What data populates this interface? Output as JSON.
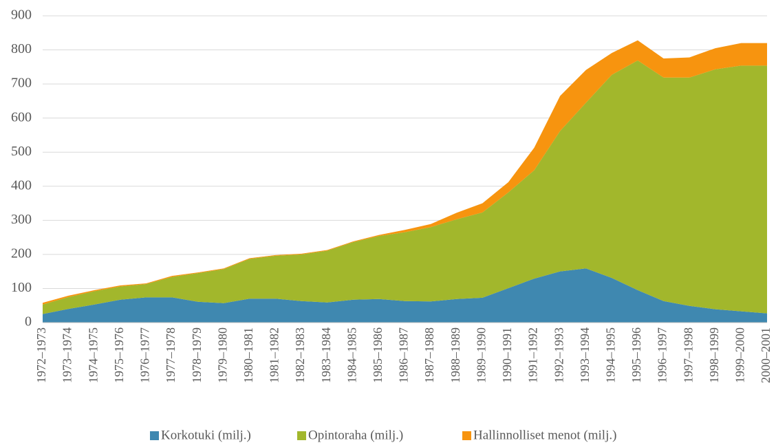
{
  "chart_data": {
    "type": "stacked_area",
    "categories": [
      "1972–1973",
      "1973–1974",
      "1974–1975",
      "1975–1976",
      "1976–1977",
      "1977–1978",
      "1978–1979",
      "1979–1980",
      "1980–1981",
      "1981–1982",
      "1982–1983",
      "1983–1984",
      "1984–1985",
      "1985–1986",
      "1986–1987",
      "1987–1988",
      "1988–1989",
      "1989–1990",
      "1990–1991",
      "1991–1992",
      "1992–1993",
      "1993–1994",
      "1994–1995",
      "1995–1996",
      "1996–1997",
      "1997–1998",
      "1998–1999",
      "1999–2000",
      "2000–2001"
    ],
    "series": [
      {
        "name": "Korkotuki (milj.)",
        "color": "#3f88b0",
        "values": [
          25,
          40,
          53,
          67,
          74,
          74,
          61,
          57,
          70,
          70,
          63,
          59,
          67,
          69,
          63,
          62,
          69,
          73,
          101,
          129,
          150,
          159,
          131,
          95,
          63,
          49,
          39,
          33,
          27
        ]
      },
      {
        "name": "Opintoraha (milj.)",
        "color": "#a2b72c",
        "values": [
          28,
          35,
          39,
          39,
          39,
          60,
          84,
          100,
          117,
          126,
          137,
          152,
          169,
          185,
          202,
          218,
          234,
          250,
          281,
          318,
          412,
          486,
          596,
          674,
          656,
          670,
          704,
          721,
          727
        ]
      },
      {
        "name": "Hallinnolliset menot (milj.)",
        "color": "#f7940f",
        "values": [
          5,
          4,
          3,
          3,
          2,
          3,
          2,
          2,
          2,
          2,
          2,
          2,
          2,
          3,
          7,
          9,
          19,
          27,
          30,
          66,
          103,
          96,
          64,
          59,
          56,
          59,
          62,
          66,
          66
        ]
      }
    ],
    "ylim": [
      0,
      900
    ],
    "yticks": [
      0,
      100,
      200,
      300,
      400,
      500,
      600,
      700,
      800,
      900
    ],
    "grid": true,
    "legend": "bottom"
  }
}
